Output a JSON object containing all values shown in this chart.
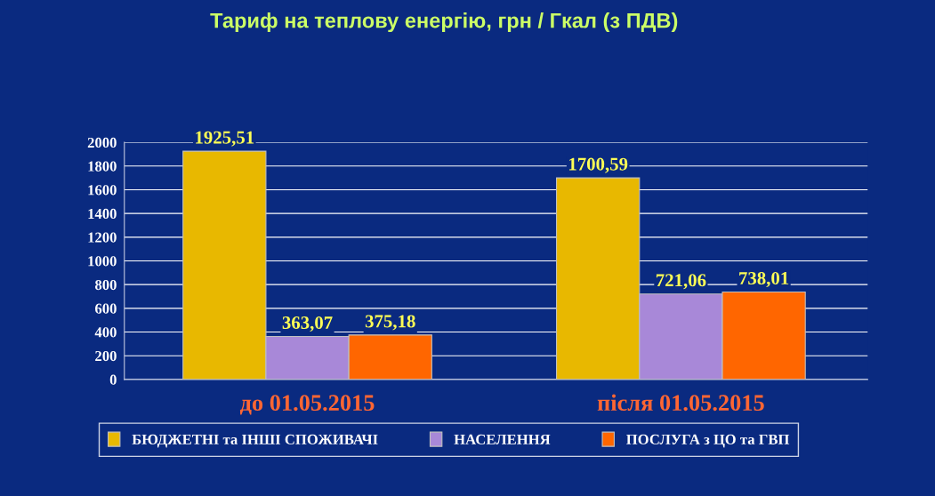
{
  "chart_data": {
    "type": "bar",
    "title": "Тариф на теплову енергію, грн / Гкал (з ПДВ)",
    "categories": [
      "до 01.05.2015",
      "після 01.05.2015"
    ],
    "series": [
      {
        "name": "БЮДЖЕТНІ та ІНШІ СПОЖИВАЧІ",
        "color": "#e8b800",
        "values": [
          1925.51,
          1700.59
        ],
        "value_labels": [
          "1925,51",
          "1700,59"
        ]
      },
      {
        "name": "НАСЕЛЕННЯ",
        "color": "#a888d8",
        "values": [
          363.07,
          721.06
        ],
        "value_labels": [
          "363,07",
          "721,06"
        ]
      },
      {
        "name": "ПОСЛУГА з ЦО та ГВП",
        "color": "#ff6600",
        "values": [
          375.18,
          738.01
        ],
        "value_labels": [
          "375,18",
          "738,01"
        ]
      }
    ],
    "ylim": [
      0,
      2000
    ],
    "yticks": [
      0,
      200,
      400,
      600,
      800,
      1000,
      1200,
      1400,
      1600,
      1800,
      2000
    ],
    "grid": "y",
    "legend": "bottom"
  }
}
